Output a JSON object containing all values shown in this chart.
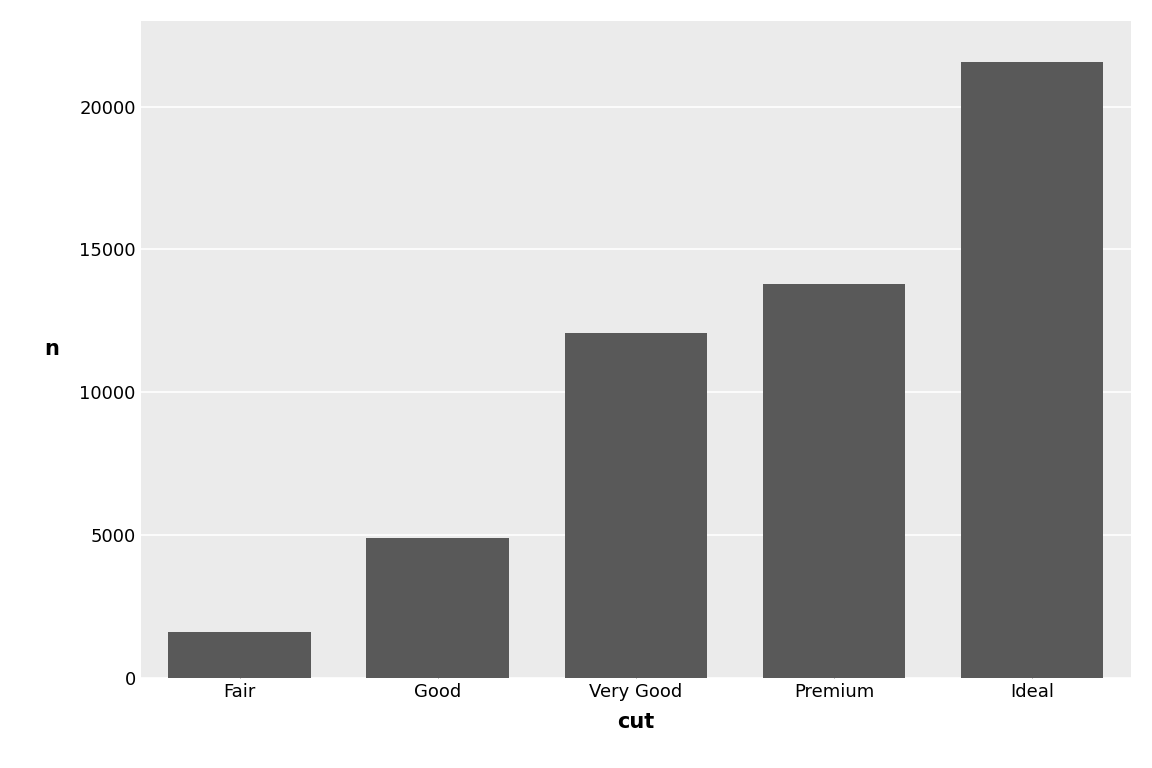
{
  "categories": [
    "Fair",
    "Good",
    "Very Good",
    "Premium",
    "Ideal"
  ],
  "values": [
    1610,
    4906,
    12082,
    13791,
    21551
  ],
  "bar_color": "#595959",
  "outer_background": "#FFFFFF",
  "panel_background": "#EBEBEB",
  "grid_color": "#FFFFFF",
  "xlabel": "cut",
  "ylabel": "n",
  "xlabel_fontsize": 15,
  "ylabel_fontsize": 15,
  "tick_label_fontsize": 13,
  "xlabel_fontweight": "bold",
  "ylabel_fontweight": "bold",
  "ylim": [
    0,
    23000
  ],
  "yticks": [
    0,
    5000,
    10000,
    15000,
    20000
  ],
  "bar_width": 0.72
}
